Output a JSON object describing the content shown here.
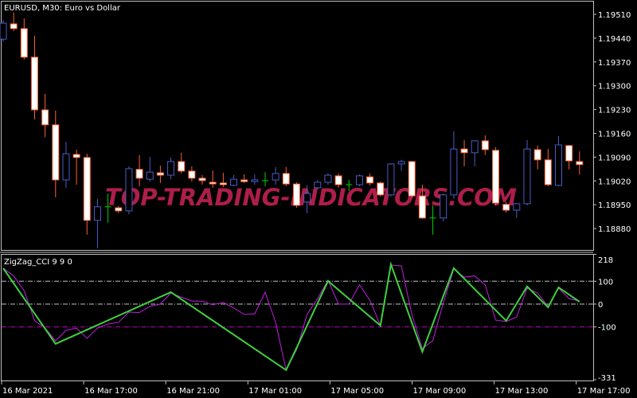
{
  "chart_data": [
    {
      "type": "candlestick",
      "title": "EURUSD, M30:  Euro vs  Dollar",
      "symbol": "EURUSD",
      "timeframe": "M30",
      "ylim": [
        1.188,
        1.1954
      ],
      "yticks": [
        "1.19510",
        "1.19440",
        "1.19370",
        "1.19300",
        "1.19230",
        "1.19160",
        "1.19090",
        "1.19020",
        "1.18950",
        "1.18880"
      ],
      "colors": {
        "bull": "#4a5cc4",
        "bear_outline": "#ff6030",
        "bear_body": "#ffffff",
        "doji": "#00d000",
        "background": "#000000",
        "grid": "#c0c0c0"
      },
      "ohlc": [
        [
          1.19437,
          1.19494,
          1.1943,
          1.19484
        ],
        [
          1.19482,
          1.19515,
          1.19461,
          1.19468
        ],
        [
          1.19468,
          1.19498,
          1.19377,
          1.19384
        ],
        [
          1.19384,
          1.19447,
          1.19201,
          1.19229
        ],
        [
          1.19229,
          1.19276,
          1.19149,
          1.19185
        ],
        [
          1.19185,
          1.19227,
          1.18972,
          1.19023
        ],
        [
          1.19023,
          1.19135,
          1.19,
          1.191
        ],
        [
          1.19098,
          1.19112,
          1.19009,
          1.19089
        ],
        [
          1.19089,
          1.191,
          1.18862,
          1.18904
        ],
        [
          1.18904,
          1.18967,
          1.18822,
          1.18944
        ],
        [
          1.18944,
          1.18983,
          1.18897,
          1.18944
        ],
        [
          1.18941,
          1.18946,
          1.18925,
          1.18932
        ],
        [
          1.18932,
          1.19063,
          1.18922,
          1.19056
        ],
        [
          1.19054,
          1.19096,
          1.19004,
          1.19028
        ],
        [
          1.19025,
          1.19091,
          1.19018,
          1.19046
        ],
        [
          1.19044,
          1.19065,
          1.19014,
          1.19037
        ],
        [
          1.19037,
          1.19089,
          1.19025,
          1.19077
        ],
        [
          1.19077,
          1.19103,
          1.19042,
          1.19049
        ],
        [
          1.19049,
          1.19063,
          1.19018,
          1.19028
        ],
        [
          1.19028,
          1.19037,
          1.19009,
          1.19021
        ],
        [
          1.19016,
          1.19051,
          1.19,
          1.19014
        ],
        [
          1.19014,
          1.19044,
          1.19002,
          1.19009
        ],
        [
          1.19007,
          1.19037,
          1.19004,
          1.19025
        ],
        [
          1.19023,
          1.19039,
          1.19014,
          1.19018
        ],
        [
          1.19018,
          1.19039,
          1.19009,
          1.19023
        ],
        [
          1.19021,
          1.19046,
          1.19004,
          1.19021
        ],
        [
          1.19023,
          1.19061,
          1.19009,
          1.19042
        ],
        [
          1.19042,
          1.19061,
          1.19004,
          1.19011
        ],
        [
          1.19011,
          1.19016,
          1.18941,
          1.18948
        ],
        [
          1.18958,
          1.19007,
          1.18925,
          1.18983
        ],
        [
          1.19,
          1.19023,
          1.18995,
          1.19016
        ],
        [
          1.19016,
          1.19042,
          1.19009,
          1.19037
        ],
        [
          1.19035,
          1.19042,
          1.19,
          1.19009
        ],
        [
          1.19009,
          1.19023,
          1.1899,
          1.19009
        ],
        [
          1.19009,
          1.19039,
          1.19004,
          1.19035
        ],
        [
          1.19032,
          1.19042,
          1.19007,
          1.19014
        ],
        [
          1.19014,
          1.19018,
          1.18974,
          1.18979
        ],
        [
          1.18979,
          1.19072,
          1.18974,
          1.1907
        ],
        [
          1.1907,
          1.19082,
          1.19049,
          1.19077
        ],
        [
          1.19077,
          1.19079,
          1.18972,
          1.18976
        ],
        [
          1.18976,
          1.19009,
          1.18908,
          1.18911
        ],
        [
          1.18911,
          1.18948,
          1.18862,
          1.18911
        ],
        [
          1.18911,
          1.18983,
          1.18901,
          1.18979
        ],
        [
          1.18979,
          1.19166,
          1.18967,
          1.19114
        ],
        [
          1.19114,
          1.1914,
          1.19063,
          1.19103
        ],
        [
          1.19103,
          1.1914,
          1.19063,
          1.19138
        ],
        [
          1.19138,
          1.19154,
          1.19096,
          1.19112
        ],
        [
          1.1911,
          1.19119,
          1.18948,
          1.18955
        ],
        [
          1.18951,
          1.18958,
          1.18927,
          1.18934
        ],
        [
          1.18934,
          1.18955,
          1.18911,
          1.18953
        ],
        [
          1.18953,
          1.1914,
          1.18948,
          1.19114
        ],
        [
          1.19112,
          1.19124,
          1.19054,
          1.19082
        ],
        [
          1.19082,
          1.19114,
          1.19004,
          1.19009
        ],
        [
          1.19007,
          1.19152,
          1.19004,
          1.19126
        ],
        [
          1.19124,
          1.19126,
          1.19054,
          1.19079
        ],
        [
          1.19077,
          1.19107,
          1.19039,
          1.19068
        ]
      ],
      "watermark": "TOP-TRADING-INDICATORS.COM"
    },
    {
      "type": "line",
      "title": "ZigZag_CCI 9 9 0",
      "ylim": [
        -331,
        218
      ],
      "ytick_labels": [
        "218",
        "100",
        "0",
        "-100",
        "-331"
      ],
      "levels": [
        {
          "value": 100,
          "color": "#c0c0c0"
        },
        {
          "value": 0,
          "color": "#c0c0c0"
        },
        {
          "value": -100,
          "color": "#c000c0"
        }
      ],
      "series": [
        {
          "color": "#c020e0",
          "values": [
            157,
            123,
            59,
            -73,
            -105,
            -161,
            -115,
            -105,
            -150,
            -105,
            -87,
            -80,
            -35,
            -37,
            -10,
            0,
            48,
            30,
            13,
            13,
            -3,
            7,
            -17,
            -45,
            -43,
            52,
            -80,
            -289,
            -200,
            -45,
            24,
            105,
            0,
            0,
            84,
            17,
            -94,
            171,
            167,
            -45,
            -195,
            -160,
            5,
            153,
            118,
            123,
            84,
            -70,
            -76,
            -57,
            70,
            48,
            -10,
            70,
            24,
            13
          ]
        },
        {
          "color": "#40d040",
          "points": [
            [
              0,
              157
            ],
            [
              5,
              -174
            ],
            [
              16,
              52
            ],
            [
              27,
              -289
            ],
            [
              31,
              101
            ],
            [
              36,
              -94
            ],
            [
              37,
              174
            ],
            [
              40,
              -209
            ],
            [
              43,
              157
            ],
            [
              48,
              -73
            ],
            [
              50,
              77
            ],
            [
              52,
              -14
            ],
            [
              53,
              73
            ],
            [
              55,
              10
            ]
          ]
        }
      ]
    }
  ],
  "time_axis": [
    "16 Mar 2021",
    "16 Mar 17:00",
    "16 Mar 21:00",
    "17 Mar 01:00",
    "17 Mar 05:00",
    "17 Mar 09:00",
    "17 Mar 13:00",
    "17 Mar 17:00"
  ]
}
